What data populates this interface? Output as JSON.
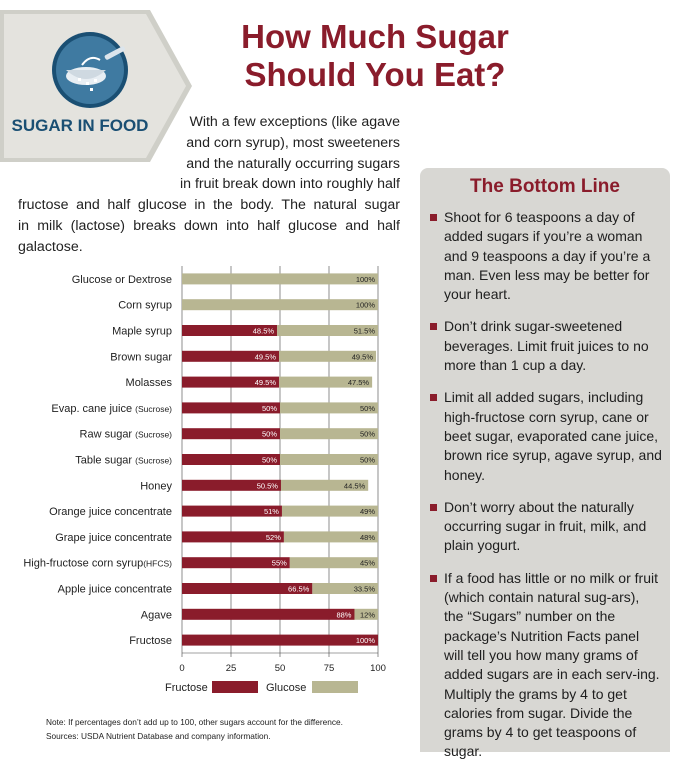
{
  "header": {
    "badge_text": "SUGAR IN FOOD",
    "title_line1": "How Much Sugar",
    "title_line2": "Should You Eat?",
    "icon": "sugar-spoon-icon"
  },
  "intro": {
    "lines": [
      "With a few exceptions (like agave",
      "and corn syrup), most sweeteners",
      "and the naturally occurring sugars",
      "in fruit break down into roughly half",
      "fructose and half glucose in the body. The natural sugar",
      "in milk (lactose) breaks down into half glucose and half",
      "galactose."
    ]
  },
  "colors": {
    "fructose": "#8a1c2b",
    "glucose": "#b8b692",
    "title": "#8a1c2b",
    "panel": "#d8d7d3",
    "badge": "#1a4f73"
  },
  "chart_data": {
    "type": "bar",
    "orientation": "horizontal",
    "stacked": true,
    "categories": [
      "Glucose or Dextrose",
      "Corn syrup",
      "Maple syrup",
      "Brown sugar",
      "Molasses",
      "Evap. cane juice (Sucrose)",
      "Raw sugar (Sucrose)",
      "Table sugar (Sucrose)",
      "Honey",
      "Orange juice concentrate",
      "Grape juice concentrate",
      "High-fructose corn syrup(HFCS)",
      "Apple juice concentrate",
      "Agave",
      "Fructose"
    ],
    "series": [
      {
        "name": "Fructose",
        "values": [
          0,
          0,
          48.5,
          49.5,
          49.5,
          50,
          50,
          50,
          50.5,
          51,
          52,
          55,
          66.5,
          88,
          100
        ],
        "labels": [
          "",
          "",
          "48.5%",
          "49.5%",
          "49.5%",
          "50%",
          "50%",
          "50%",
          "50.5%",
          "51%",
          "52%",
          "55%",
          "66.5%",
          "88%",
          "100%"
        ]
      },
      {
        "name": "Glucose",
        "values": [
          100,
          100,
          51.5,
          49.5,
          47.5,
          50,
          50,
          50,
          44.5,
          49,
          48,
          45,
          33.5,
          12,
          0
        ],
        "labels": [
          "100%",
          "100%",
          "51.5%",
          "49.5%",
          "47.5%",
          "50%",
          "50%",
          "50%",
          "44.5%",
          "49%",
          "48%",
          "45%",
          "33.5%",
          "12%",
          ""
        ]
      }
    ],
    "x_ticks": [
      "0",
      "25",
      "50",
      "75",
      "100"
    ],
    "xlim": [
      0,
      100
    ],
    "grid": true,
    "legend": "bottom"
  },
  "notes": {
    "note": "Note: If percentages don’t add up to 100, other sugars account for the difference.",
    "sources": "Sources: USDA Nutrient Database and company information."
  },
  "sidebar": {
    "title": "The Bottom Line",
    "items": [
      "Shoot for 6 teaspoons a day of added sugars if you’re a woman and 9 teaspoons a day if you’re a man. Even less may be better for your heart.",
      "Don’t drink sugar-sweetened beverages. Limit fruit juices to no more than 1 cup a day.",
      "Limit all added sugars, including high-fructose corn syrup, cane or beet sugar, evaporated cane juice, brown rice syrup, agave syrup, and honey.",
      "Don’t worry about the naturally occurring sugar in fruit, milk, and plain yogurt.",
      "If a food has little or no milk or fruit (which contain natural sug-ars), the “Sugars” number on the package’s Nutrition Facts panel will tell you how many grams of added sugars are in each serv-ing. Multiply the grams by 4 to get calories from sugar. Divide the grams by 4 to get teaspoons of sugar."
    ]
  }
}
